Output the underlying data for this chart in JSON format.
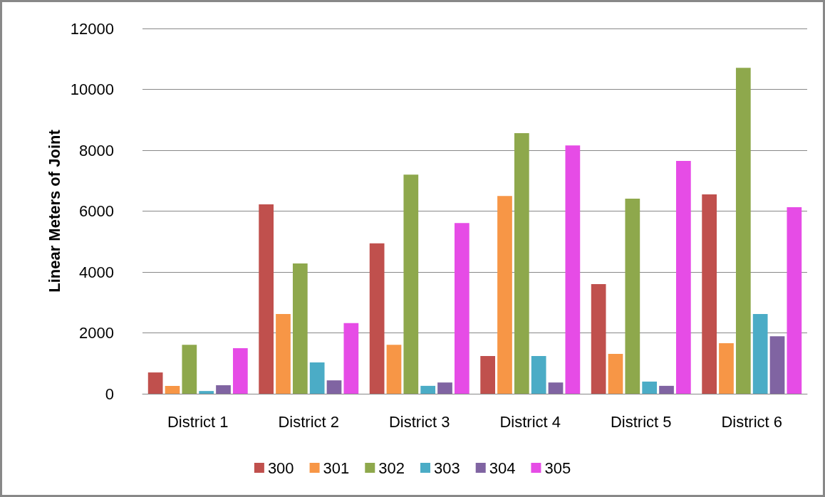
{
  "chart_data": {
    "type": "bar",
    "ylabel": "Linear Meters of Joint",
    "categories": [
      "District 1",
      "District 2",
      "District 3",
      "District 4",
      "District 5",
      "District 6"
    ],
    "series": [
      {
        "name": "300",
        "color": "#c0504d",
        "values": [
          700,
          6220,
          4940,
          1240,
          3600,
          6550
        ]
      },
      {
        "name": "301",
        "color": "#f79646",
        "values": [
          260,
          2620,
          1610,
          6500,
          1310,
          1660
        ]
      },
      {
        "name": "302",
        "color": "#8ea84c",
        "values": [
          1610,
          4280,
          7200,
          8560,
          6410,
          10710
        ]
      },
      {
        "name": "303",
        "color": "#4bacc6",
        "values": [
          90,
          1030,
          260,
          1240,
          400,
          2620
        ]
      },
      {
        "name": "304",
        "color": "#8064a2",
        "values": [
          280,
          440,
          370,
          370,
          260,
          1890
        ]
      },
      {
        "name": "305",
        "color": "#e64ce6",
        "values": [
          1500,
          2320,
          5610,
          8160,
          7650,
          6130
        ]
      }
    ],
    "ylim": [
      0,
      12000
    ],
    "yticks": [
      0,
      2000,
      4000,
      6000,
      8000,
      10000,
      12000
    ],
    "grid": "y",
    "legend": "bottom"
  }
}
